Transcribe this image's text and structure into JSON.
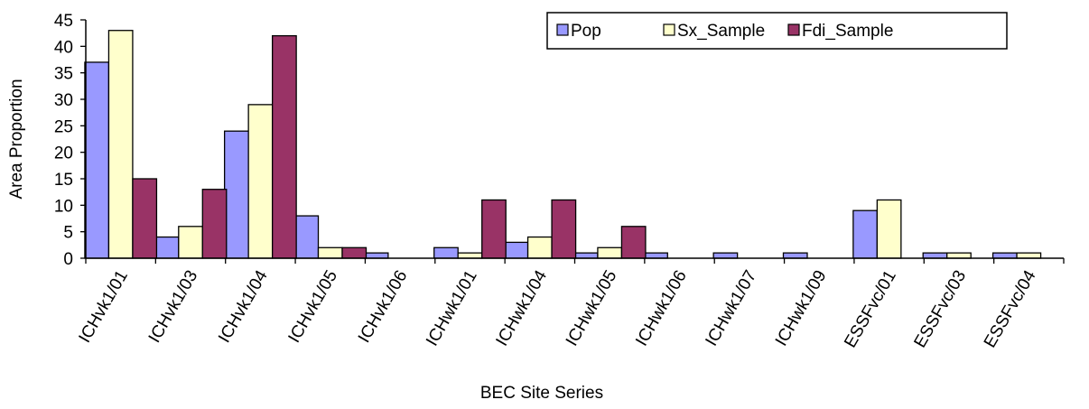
{
  "chart_data": {
    "type": "bar",
    "title": "",
    "xlabel": "BEC Site Series",
    "ylabel": "Area Proportion",
    "ylim": [
      0,
      45
    ],
    "yticks": [
      0,
      5,
      10,
      15,
      20,
      25,
      30,
      35,
      40,
      45
    ],
    "grid": false,
    "legend_position": "top-right",
    "categories": [
      "ICHvk1/01",
      "ICHvk1/03",
      "ICHvk1/04",
      "ICHvk1/05",
      "ICHvk1/06",
      "ICHwk1/01",
      "ICHwk1/04",
      "ICHwk1/05",
      "ICHwk1/06",
      "ICHwk1/07",
      "ICHwk1/09",
      "ESSFvc/01",
      "ESSFvc/03",
      "ESSFvc/04"
    ],
    "series": [
      {
        "name": "Pop",
        "color": "#9999ff",
        "values": [
          37,
          4,
          24,
          8,
          1,
          2,
          3,
          1,
          1,
          1,
          1,
          9,
          1,
          1
        ]
      },
      {
        "name": "Sx_Sample",
        "color": "#ffffcc",
        "values": [
          43,
          6,
          29,
          2,
          0,
          1,
          4,
          2,
          0,
          0,
          0,
          11,
          1,
          1
        ]
      },
      {
        "name": "Fdi_Sample",
        "color": "#993366",
        "values": [
          15,
          13,
          42,
          2,
          0,
          11,
          11,
          6,
          0,
          0,
          0,
          0,
          0,
          0
        ]
      }
    ]
  }
}
